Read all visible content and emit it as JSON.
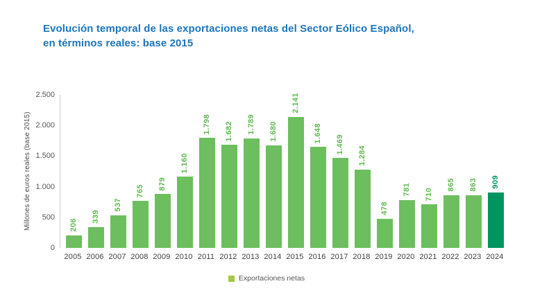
{
  "title": {
    "line1": "Evolución temporal de las exportaciones netas del Sector Eólico Español,",
    "line2": "en términos reales: base 2015"
  },
  "chart_data": {
    "type": "bar",
    "title": "Evolución temporal de las exportaciones netas del Sector Eólico Español, en términos reales: base 2015",
    "categories": [
      "2005",
      "2006",
      "2007",
      "2008",
      "2009",
      "2010",
      "2011",
      "2012",
      "2013",
      "2014",
      "2015",
      "2016",
      "2017",
      "2018",
      "2019",
      "2020",
      "2021",
      "2022",
      "2023",
      "2024"
    ],
    "values": [
      206,
      339,
      537,
      765,
      879,
      1160,
      1798,
      1682,
      1789,
      1680,
      2141,
      1648,
      1469,
      1284,
      478,
      781,
      710,
      865,
      863,
      909
    ],
    "value_labels": [
      "206",
      "339",
      "537",
      "765",
      "879",
      "1.160",
      "1.798",
      "1.682",
      "1.789",
      "1.680",
      "2.141",
      "1.648",
      "1.469",
      "1.284",
      "478",
      "781",
      "710",
      "865",
      "863",
      "909"
    ],
    "xlabel": "",
    "ylabel": "Millones de euros reales (base 2015)",
    "ylim": [
      0,
      2500
    ],
    "yticks": [
      0,
      500,
      1000,
      1500,
      2000,
      2500
    ],
    "ytick_labels": [
      "0",
      "500",
      "1.000",
      "1.500",
      "2.000",
      "2.500"
    ],
    "grid": false,
    "legend": "Exportaciones netas",
    "legend_position": "bottom-center",
    "highlight_index": 19,
    "colors": {
      "bar": "#6cbe5e",
      "bar_highlight": "#00945f",
      "value_label": "#5fb94f",
      "value_label_highlight": "#00945f",
      "legend_marker": "#a3c93e",
      "title": "#1b75bc",
      "axis_line": "#c9c9c9"
    }
  }
}
